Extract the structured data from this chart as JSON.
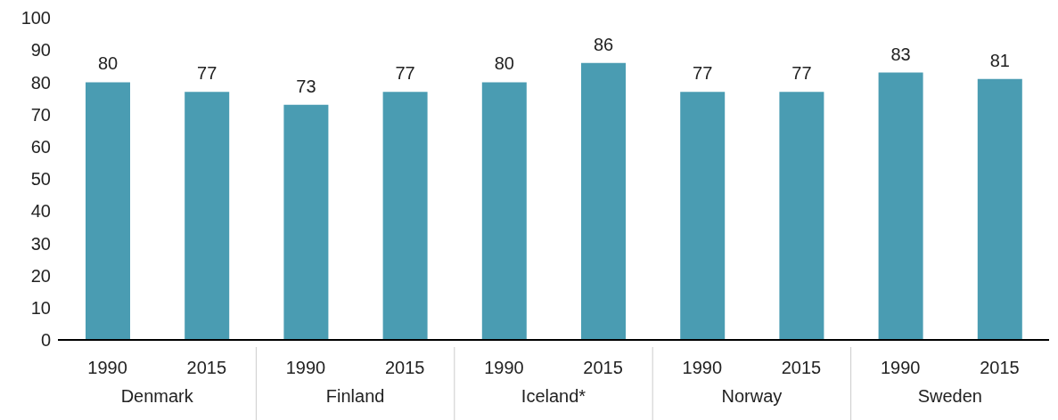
{
  "chart_data": {
    "type": "bar",
    "categories": [
      "1990",
      "2015",
      "1990",
      "2015",
      "1990",
      "2015",
      "1990",
      "2015",
      "1990",
      "2015"
    ],
    "values": [
      80,
      77,
      73,
      77,
      80,
      86,
      77,
      77,
      83,
      81
    ],
    "color": "#4a9cb2",
    "ylim": [
      0,
      100
    ],
    "yticks": [
      0,
      10,
      20,
      30,
      40,
      50,
      60,
      70,
      80,
      90,
      100
    ],
    "data_labels": true,
    "annotations": [
      "Denmark",
      "Finland",
      "Iceland*",
      "Norway",
      "Sweden"
    ]
  }
}
